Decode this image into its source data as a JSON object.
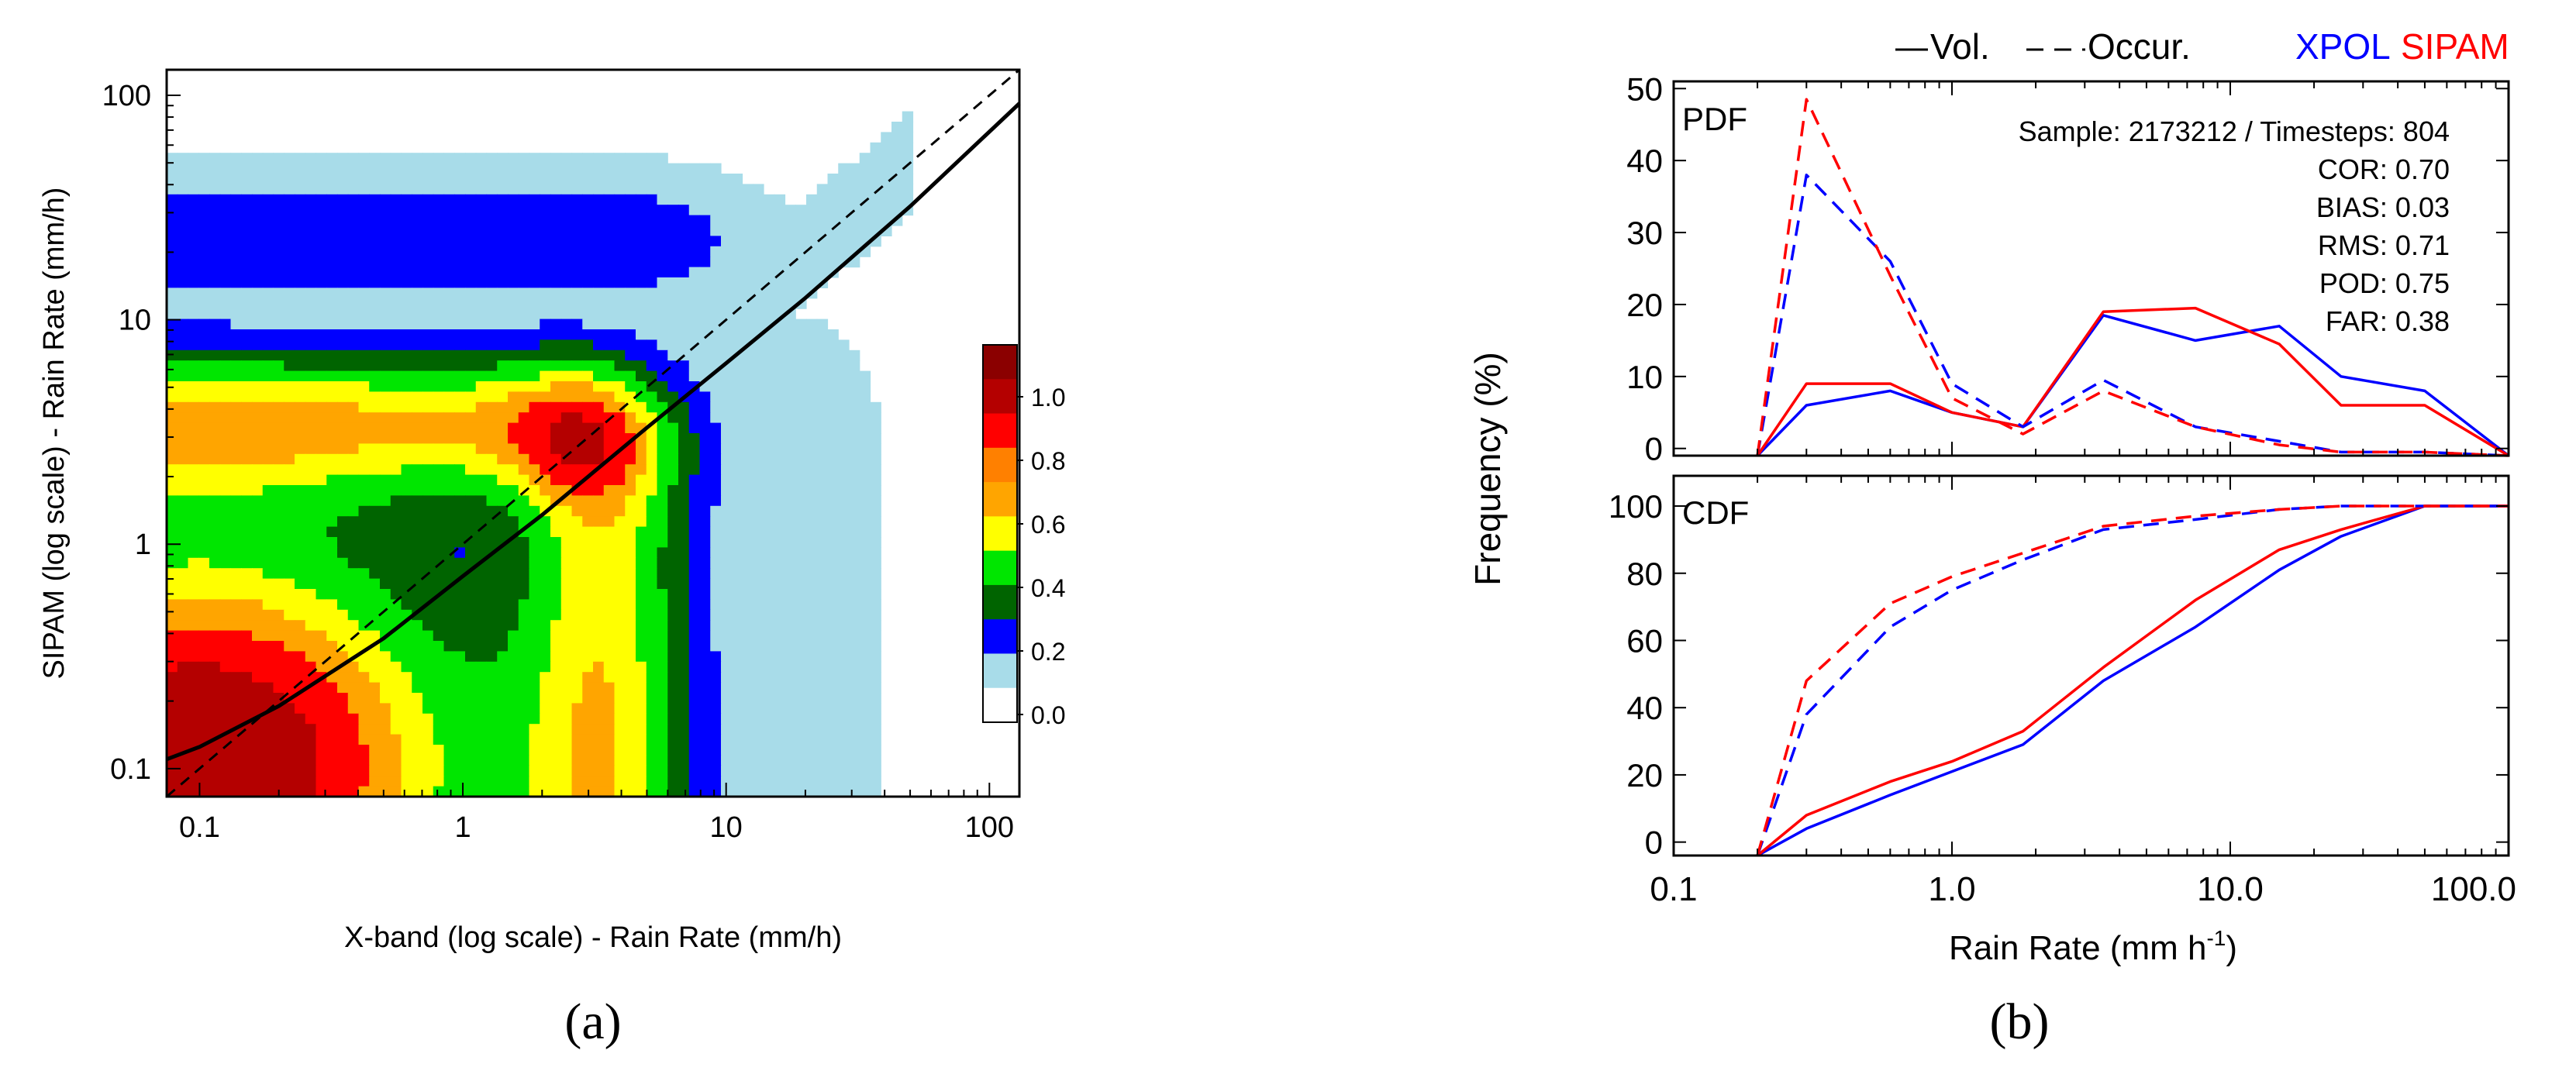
{
  "chart_data": [
    {
      "panel": "a",
      "type": "heatmap",
      "caption": "(a)",
      "xlabel": "X-band (log scale) - Rain Rate (mm/h)",
      "ylabel": "SIPAM (log scale) - Rain Rate (mm/h)",
      "x_scale": "log",
      "y_scale": "log",
      "xlim": [
        0.075,
        130
      ],
      "ylim": [
        0.075,
        130
      ],
      "x_ticks": [
        0.1,
        1,
        10,
        100
      ],
      "x_tick_labels": [
        "0.1",
        "1",
        "10",
        "100"
      ],
      "y_ticks": [
        0.1,
        1,
        10,
        100
      ],
      "y_tick_labels": [
        "0.1",
        "1",
        "10",
        "100"
      ],
      "colorbar": {
        "levels": [
          0.0,
          0.2,
          0.4,
          0.6,
          0.8,
          1.0
        ],
        "labels": [
          "0.0",
          "0.2",
          "0.4",
          "0.6",
          "0.8",
          "1.0"
        ],
        "colors": [
          "#ffffff",
          "#a8dce9",
          "#0000ff",
          "#006400",
          "#00e600",
          "#ffff00",
          "#ffa500",
          "#ff8000",
          "#ff0000",
          "#b40000",
          "#8b0000"
        ]
      },
      "density_palette": [
        "#ffffff",
        "#a8dce9",
        "#0000ff",
        "#006400",
        "#00e600",
        "#ffff00",
        "#ffa500",
        "#ff0000",
        "#b40000"
      ],
      "lines": [
        {
          "name": "one-to-one",
          "style": "dashed",
          "x": [
            0.075,
            130
          ],
          "y": [
            0.075,
            130
          ]
        },
        {
          "name": "fit",
          "style": "solid",
          "x": [
            0.075,
            0.1,
            0.2,
            0.5,
            1,
            2,
            5,
            10,
            20,
            50,
            130
          ],
          "y": [
            0.11,
            0.125,
            0.19,
            0.38,
            0.72,
            1.35,
            3.3,
            6.4,
            12.5,
            32,
            92
          ]
        }
      ]
    },
    {
      "panel": "b",
      "type": "line",
      "caption": "(b)",
      "xlabel": "Rain Rate (mm h",
      "xlabel_sup": "-1",
      "xlabel_close": ")",
      "ylabel": "Frequency (%)",
      "x_scale": "log",
      "xlim": [
        0.1,
        100
      ],
      "x_ticks": [
        0.1,
        1,
        10,
        100
      ],
      "x_tick_labels": [
        "0.1",
        "1.0",
        "10.0",
        "100.0"
      ],
      "legend": {
        "vol": "Vol.",
        "occur": "Occur.",
        "xpol": "XPOL",
        "sipam": "SIPAM"
      },
      "colors": {
        "xpol": "#0000ff",
        "sipam": "#ff0000"
      },
      "stats": [
        "Sample: 2173212 / Timesteps: 804",
        "COR: 0.70",
        "BIAS: 0.03",
        "RMS: 0.71",
        "POD: 0.75",
        "FAR: 0.38"
      ],
      "pdf": {
        "label": "PDF",
        "ylim": [
          -1,
          51
        ],
        "y_ticks": [
          0,
          10,
          20,
          30,
          40,
          50
        ],
        "y_tick_labels": [
          "0",
          "10",
          "20",
          "30",
          "40",
          "50"
        ],
        "x": [
          0.2,
          0.3,
          0.6,
          1.0,
          1.8,
          3.5,
          7.5,
          15,
          25,
          50,
          100
        ],
        "series": [
          {
            "name": "XPOL Vol.",
            "values": [
              -1,
              6,
              8,
              5,
              3,
              18.5,
              15,
              17,
              10,
              8,
              -1
            ]
          },
          {
            "name": "SIPAM Vol.",
            "values": [
              -1,
              9,
              9,
              5,
              3,
              19,
              19.5,
              14.5,
              6,
              6,
              -1
            ]
          },
          {
            "name": "XPOL Occur.",
            "values": [
              -1,
              38,
              26,
              9,
              3,
              9.5,
              3,
              1,
              -0.5,
              -0.5,
              -1
            ]
          },
          {
            "name": "SIPAM Occur.",
            "values": [
              -1,
              48.5,
              24,
              7,
              2,
              8,
              3,
              0.5,
              -0.5,
              -0.5,
              -1
            ]
          }
        ]
      },
      "cdf": {
        "label": "CDF",
        "ylim": [
          -4,
          109
        ],
        "y_ticks": [
          0,
          20,
          40,
          60,
          80,
          100
        ],
        "y_tick_labels": [
          "0",
          "20",
          "40",
          "60",
          "80",
          "100"
        ],
        "x": [
          0.2,
          0.3,
          0.6,
          1.0,
          1.8,
          3.5,
          7.5,
          15,
          25,
          50,
          100
        ],
        "series": [
          {
            "name": "XPOL Vol.",
            "values": [
              -4,
              4,
              14,
              21,
              29,
              48,
              64,
              81,
              91,
              100,
              100
            ]
          },
          {
            "name": "SIPAM Vol.",
            "values": [
              -4,
              8,
              18,
              24,
              33,
              52,
              72,
              87,
              93,
              100,
              100
            ]
          },
          {
            "name": "XPOL Occur.",
            "values": [
              -4,
              38,
              64,
              75,
              84,
              93,
              96,
              99,
              100,
              100,
              100
            ]
          },
          {
            "name": "SIPAM Occur.",
            "values": [
              -4,
              48,
              71,
              79,
              86,
              94,
              97,
              99,
              100,
              100,
              100
            ]
          }
        ]
      }
    }
  ]
}
